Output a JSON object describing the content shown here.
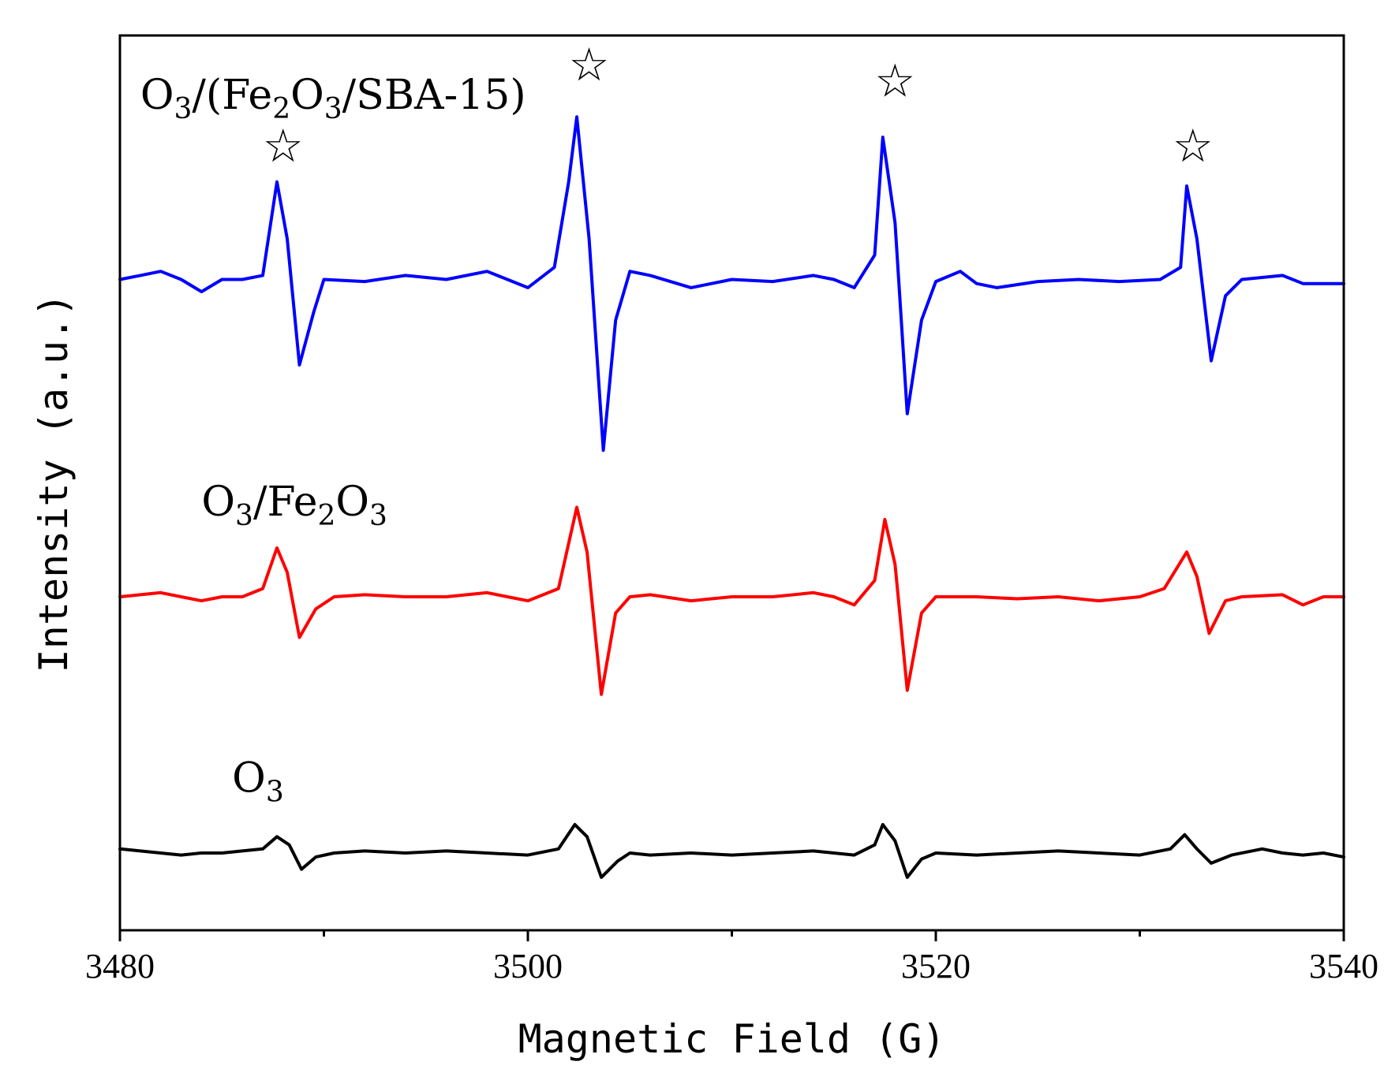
{
  "chart_data": {
    "type": "line",
    "title": "",
    "xlabel": "Magnetic Field (G)",
    "ylabel": "Intensity (a.u.)",
    "xlim": [
      3480,
      3540
    ],
    "ylim": [
      0,
      22
    ],
    "x_ticks": [
      3480,
      3500,
      3520,
      3540
    ],
    "x_minor_ticks": [
      3490,
      3510,
      3530
    ],
    "y_ticks_shown": false,
    "grid": false,
    "peak_marker": "☆",
    "series": [
      {
        "name": "O3/(Fe2O3/SBA-15)",
        "label_parts": [
          {
            "text": "O",
            "sub": false
          },
          {
            "text": "3",
            "sub": true
          },
          {
            "text": "/(Fe",
            "sub": false
          },
          {
            "text": "2",
            "sub": true
          },
          {
            "text": "O",
            "sub": false
          },
          {
            "text": "3",
            "sub": true
          },
          {
            "text": "/SBA-15)",
            "sub": false
          }
        ],
        "color": "#0000ff",
        "baseline": 16.0,
        "points": [
          [
            3480.0,
            16.0
          ],
          [
            3481.0,
            16.1
          ],
          [
            3482.0,
            16.2
          ],
          [
            3483.0,
            16.0
          ],
          [
            3484.0,
            15.7
          ],
          [
            3485.0,
            16.0
          ],
          [
            3486.0,
            16.0
          ],
          [
            3487.0,
            16.1
          ],
          [
            3487.7,
            18.4
          ],
          [
            3488.2,
            17.0
          ],
          [
            3488.8,
            13.9
          ],
          [
            3489.5,
            15.2
          ],
          [
            3490.0,
            16.0
          ],
          [
            3492.0,
            15.95
          ],
          [
            3494.0,
            16.1
          ],
          [
            3496.0,
            16.0
          ],
          [
            3498.0,
            16.2
          ],
          [
            3499.0,
            16.0
          ],
          [
            3500.0,
            15.8
          ],
          [
            3501.3,
            16.3
          ],
          [
            3502.0,
            18.4
          ],
          [
            3502.4,
            20.0
          ],
          [
            3503.0,
            17.0
          ],
          [
            3503.7,
            11.8
          ],
          [
            3504.3,
            15.0
          ],
          [
            3505.0,
            16.2
          ],
          [
            3506.0,
            16.1
          ],
          [
            3508.0,
            15.8
          ],
          [
            3510.0,
            16.0
          ],
          [
            3512.0,
            15.95
          ],
          [
            3514.0,
            16.1
          ],
          [
            3515.0,
            16.0
          ],
          [
            3516.0,
            15.8
          ],
          [
            3517.0,
            16.6
          ],
          [
            3517.4,
            19.5
          ],
          [
            3518.0,
            17.4
          ],
          [
            3518.6,
            12.7
          ],
          [
            3519.3,
            15.0
          ],
          [
            3520.0,
            15.95
          ],
          [
            3521.2,
            16.2
          ],
          [
            3522.0,
            15.9
          ],
          [
            3523.0,
            15.8
          ],
          [
            3525.0,
            15.95
          ],
          [
            3527.0,
            16.0
          ],
          [
            3529.0,
            15.95
          ],
          [
            3531.0,
            16.0
          ],
          [
            3532.0,
            16.3
          ],
          [
            3532.3,
            18.3
          ],
          [
            3532.8,
            17.0
          ],
          [
            3533.5,
            14.0
          ],
          [
            3534.2,
            15.6
          ],
          [
            3535.0,
            16.0
          ],
          [
            3537.0,
            16.1
          ],
          [
            3538.0,
            15.9
          ],
          [
            3539.0,
            15.9
          ],
          [
            3540.0,
            15.9
          ]
        ]
      },
      {
        "name": "O3/Fe2O3",
        "label_parts": [
          {
            "text": "O",
            "sub": false
          },
          {
            "text": "3",
            "sub": true
          },
          {
            "text": "/Fe",
            "sub": false
          },
          {
            "text": "2",
            "sub": true
          },
          {
            "text": "O",
            "sub": false
          },
          {
            "text": "3",
            "sub": true
          }
        ],
        "color": "#ff0000",
        "baseline": 8.2,
        "points": [
          [
            3480.0,
            8.2
          ],
          [
            3481.0,
            8.25
          ],
          [
            3482.0,
            8.3
          ],
          [
            3483.0,
            8.2
          ],
          [
            3484.0,
            8.1
          ],
          [
            3485.0,
            8.2
          ],
          [
            3486.0,
            8.2
          ],
          [
            3487.0,
            8.4
          ],
          [
            3487.7,
            9.4
          ],
          [
            3488.2,
            8.8
          ],
          [
            3488.8,
            7.2
          ],
          [
            3489.6,
            7.9
          ],
          [
            3490.5,
            8.2
          ],
          [
            3492.0,
            8.25
          ],
          [
            3494.0,
            8.2
          ],
          [
            3496.0,
            8.2
          ],
          [
            3498.0,
            8.3
          ],
          [
            3499.0,
            8.2
          ],
          [
            3500.0,
            8.1
          ],
          [
            3501.5,
            8.4
          ],
          [
            3502.4,
            10.4
          ],
          [
            3502.9,
            9.3
          ],
          [
            3503.6,
            5.8
          ],
          [
            3504.3,
            7.8
          ],
          [
            3505.0,
            8.2
          ],
          [
            3506.0,
            8.25
          ],
          [
            3508.0,
            8.1
          ],
          [
            3510.0,
            8.2
          ],
          [
            3512.0,
            8.2
          ],
          [
            3514.0,
            8.3
          ],
          [
            3515.0,
            8.2
          ],
          [
            3516.0,
            8.0
          ],
          [
            3517.0,
            8.6
          ],
          [
            3517.5,
            10.1
          ],
          [
            3518.0,
            9.0
          ],
          [
            3518.6,
            5.9
          ],
          [
            3519.3,
            7.8
          ],
          [
            3520.0,
            8.2
          ],
          [
            3522.0,
            8.2
          ],
          [
            3524.0,
            8.15
          ],
          [
            3526.0,
            8.2
          ],
          [
            3528.0,
            8.1
          ],
          [
            3530.0,
            8.2
          ],
          [
            3531.2,
            8.4
          ],
          [
            3532.3,
            9.3
          ],
          [
            3532.8,
            8.7
          ],
          [
            3533.4,
            7.3
          ],
          [
            3534.2,
            8.1
          ],
          [
            3535.0,
            8.2
          ],
          [
            3537.0,
            8.25
          ],
          [
            3538.0,
            8.0
          ],
          [
            3539.0,
            8.2
          ],
          [
            3540.0,
            8.2
          ]
        ]
      },
      {
        "name": "O3",
        "label_parts": [
          {
            "text": "O",
            "sub": false
          },
          {
            "text": "3",
            "sub": true
          }
        ],
        "color": "#000000",
        "baseline": 1.9,
        "points": [
          [
            3480.0,
            2.0
          ],
          [
            3481.0,
            1.95
          ],
          [
            3482.0,
            1.9
          ],
          [
            3483.0,
            1.85
          ],
          [
            3484.0,
            1.9
          ],
          [
            3485.0,
            1.9
          ],
          [
            3486.0,
            1.95
          ],
          [
            3487.0,
            2.0
          ],
          [
            3487.7,
            2.3
          ],
          [
            3488.3,
            2.1
          ],
          [
            3488.9,
            1.5
          ],
          [
            3489.6,
            1.8
          ],
          [
            3490.5,
            1.9
          ],
          [
            3492.0,
            1.95
          ],
          [
            3494.0,
            1.9
          ],
          [
            3496.0,
            1.95
          ],
          [
            3498.0,
            1.9
          ],
          [
            3500.0,
            1.85
          ],
          [
            3501.5,
            2.0
          ],
          [
            3502.3,
            2.6
          ],
          [
            3502.9,
            2.3
          ],
          [
            3503.6,
            1.3
          ],
          [
            3504.4,
            1.7
          ],
          [
            3505.0,
            1.9
          ],
          [
            3506.0,
            1.85
          ],
          [
            3508.0,
            1.9
          ],
          [
            3510.0,
            1.85
          ],
          [
            3512.0,
            1.9
          ],
          [
            3514.0,
            1.95
          ],
          [
            3516.0,
            1.85
          ],
          [
            3517.0,
            2.1
          ],
          [
            3517.4,
            2.6
          ],
          [
            3518.0,
            2.2
          ],
          [
            3518.6,
            1.3
          ],
          [
            3519.3,
            1.75
          ],
          [
            3520.0,
            1.9
          ],
          [
            3522.0,
            1.85
          ],
          [
            3524.0,
            1.9
          ],
          [
            3526.0,
            1.95
          ],
          [
            3528.0,
            1.9
          ],
          [
            3530.0,
            1.85
          ],
          [
            3531.5,
            2.0
          ],
          [
            3532.2,
            2.35
          ],
          [
            3532.8,
            2.0
          ],
          [
            3533.5,
            1.65
          ],
          [
            3534.5,
            1.85
          ],
          [
            3536.0,
            2.0
          ],
          [
            3537.0,
            1.9
          ],
          [
            3538.0,
            1.85
          ],
          [
            3539.0,
            1.9
          ],
          [
            3540.0,
            1.8
          ]
        ]
      }
    ],
    "annotations": [
      {
        "text": "☆",
        "x": 3488.0,
        "y": 18.9
      },
      {
        "text": "☆",
        "x": 3503.0,
        "y": 20.9
      },
      {
        "text": "☆",
        "x": 3518.0,
        "y": 20.5
      },
      {
        "text": "☆",
        "x": 3532.6,
        "y": 18.9
      }
    ],
    "series_label_anchors": [
      {
        "series": "O3/(Fe2O3/SBA-15)",
        "x": 3481.0,
        "y": 20.2
      },
      {
        "series": "O3/Fe2O3",
        "x": 3484.0,
        "y": 10.2
      },
      {
        "series": "O3",
        "x": 3485.5,
        "y": 3.4
      }
    ]
  }
}
